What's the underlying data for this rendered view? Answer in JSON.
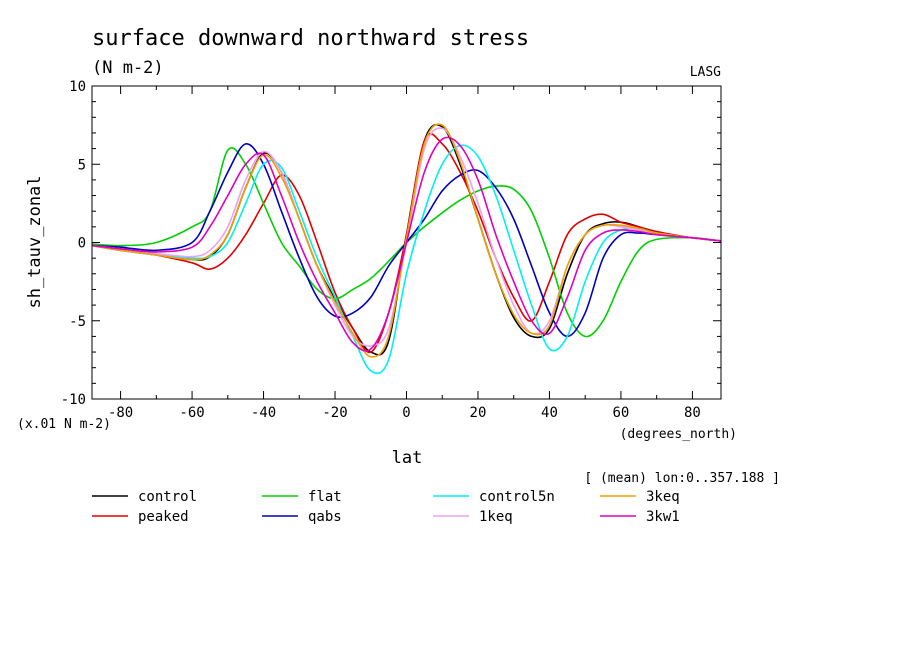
{
  "chart_data": {
    "type": "line",
    "title": "surface downward northward stress",
    "units": "(N m-2)",
    "source": "LASG",
    "xlabel": "lat",
    "x_units": "(degrees_north)",
    "ylabel": "sh_tauv_zonal",
    "y_scale_note": "(x.01 N m-2)",
    "subset_note": "[ (mean) lon:0..357.188 ]",
    "xlim": [
      -88,
      88
    ],
    "ylim": [
      -10,
      10
    ],
    "x_ticks": [
      -80,
      -60,
      -40,
      -20,
      0,
      20,
      40,
      60,
      80
    ],
    "y_ticks": [
      -10,
      -5,
      0,
      5,
      10
    ],
    "x_tick_labels": [
      "-80",
      "-60",
      "-40",
      "-20",
      "0",
      "20",
      "40",
      "60",
      "80"
    ],
    "y_tick_labels": [
      "-10",
      "-5",
      "0",
      "5",
      "10"
    ],
    "x": [
      -88,
      -80,
      -70,
      -60,
      -55,
      -50,
      -45,
      -40,
      -35,
      -30,
      -25,
      -20,
      -15,
      -10,
      -5,
      0,
      5,
      10,
      15,
      20,
      25,
      30,
      35,
      40,
      45,
      50,
      55,
      60,
      65,
      70,
      80,
      88
    ],
    "series": [
      {
        "name": "control",
        "color": "#000000",
        "values": [
          -0.2,
          -0.5,
          -0.8,
          -1.1,
          -0.9,
          0.5,
          3.5,
          5.7,
          4.5,
          1.5,
          -1.5,
          -3.6,
          -5.5,
          -7.0,
          -6.3,
          0.5,
          6.5,
          7.4,
          5.0,
          1.5,
          -2.0,
          -4.8,
          -6.0,
          -5.5,
          -2.0,
          0.5,
          1.2,
          1.3,
          1.0,
          0.6,
          0.3,
          0.1
        ]
      },
      {
        "name": "peaked",
        "color": "#e00000",
        "values": [
          -0.2,
          -0.4,
          -0.8,
          -1.3,
          -1.7,
          -1.0,
          0.5,
          2.5,
          4.3,
          3.0,
          0.0,
          -3.2,
          -5.5,
          -7.0,
          -4.5,
          0.5,
          6.5,
          6.3,
          4.5,
          2.0,
          -1.0,
          -3.5,
          -5.0,
          -2.5,
          0.5,
          1.5,
          1.8,
          1.3,
          1.0,
          0.7,
          0.3,
          0.1
        ]
      },
      {
        "name": "flat",
        "color": "#00d000",
        "values": [
          -0.1,
          -0.2,
          0.0,
          1.0,
          2.0,
          5.9,
          5.0,
          2.5,
          0.0,
          -1.5,
          -3.0,
          -3.6,
          -3.0,
          -2.3,
          -1.2,
          0.0,
          1.0,
          1.9,
          2.7,
          3.3,
          3.6,
          3.4,
          2.0,
          -1.0,
          -4.5,
          -6.0,
          -5.0,
          -2.5,
          -0.5,
          0.2,
          0.3,
          0.1
        ]
      },
      {
        "name": "qabs",
        "color": "#0000c0",
        "values": [
          -0.2,
          -0.3,
          -0.5,
          0.0,
          2.0,
          4.5,
          6.3,
          5.0,
          2.0,
          -1.0,
          -3.5,
          -4.7,
          -4.5,
          -3.5,
          -1.5,
          0.0,
          1.5,
          3.3,
          4.3,
          4.6,
          3.5,
          1.5,
          -1.5,
          -4.5,
          -6.0,
          -4.5,
          -1.0,
          0.5,
          0.6,
          0.5,
          0.3,
          0.1
        ]
      },
      {
        "name": "control5n",
        "color": "#00f0f0",
        "values": [
          -0.2,
          -0.5,
          -0.8,
          -1.0,
          -0.9,
          0.0,
          2.5,
          5.0,
          4.8,
          2.0,
          -1.0,
          -3.5,
          -6.0,
          -8.2,
          -7.5,
          -2.0,
          2.0,
          5.0,
          6.2,
          5.5,
          3.0,
          -0.5,
          -4.0,
          -6.8,
          -6.0,
          -2.5,
          0.0,
          0.8,
          0.9,
          0.6,
          0.3,
          0.1
        ]
      },
      {
        "name": "1keq",
        "color": "#f0a0f0",
        "values": [
          -0.2,
          -0.4,
          -0.7,
          -0.9,
          -0.5,
          1.0,
          4.0,
          5.8,
          4.5,
          1.5,
          -1.5,
          -4.0,
          -6.0,
          -6.6,
          -5.5,
          0.0,
          6.0,
          7.3,
          5.5,
          2.5,
          -1.0,
          -4.0,
          -5.8,
          -5.0,
          -1.5,
          0.5,
          1.1,
          1.0,
          0.8,
          0.5,
          0.3,
          0.1
        ]
      },
      {
        "name": "3keq",
        "color": "#f0a000",
        "values": [
          -0.2,
          -0.5,
          -0.8,
          -1.1,
          -0.8,
          0.5,
          3.5,
          5.6,
          4.2,
          1.5,
          -1.5,
          -3.8,
          -5.8,
          -7.3,
          -6.0,
          0.3,
          6.3,
          7.5,
          5.2,
          1.5,
          -2.0,
          -4.6,
          -5.8,
          -5.3,
          -1.5,
          0.5,
          1.1,
          1.1,
          0.9,
          0.6,
          0.3,
          0.1
        ]
      },
      {
        "name": "3kw1",
        "color": "#e000c0",
        "values": [
          -0.2,
          -0.4,
          -0.6,
          -0.3,
          1.0,
          3.0,
          5.0,
          5.6,
          3.0,
          0.0,
          -2.5,
          -4.5,
          -6.4,
          -6.8,
          -4.5,
          0.0,
          4.5,
          6.6,
          6.2,
          4.0,
          0.5,
          -2.5,
          -5.0,
          -5.8,
          -3.5,
          -0.5,
          0.6,
          0.8,
          0.7,
          0.5,
          0.3,
          0.1
        ]
      }
    ]
  }
}
